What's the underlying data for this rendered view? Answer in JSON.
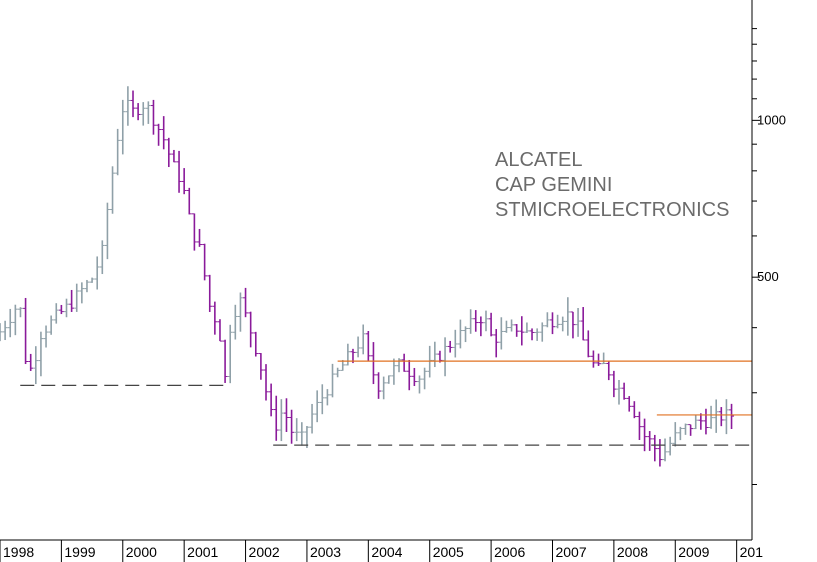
{
  "chart_data": {
    "type": "ohlc-bar",
    "title": "",
    "annotations": [
      "ALCATEL",
      "CAP GEMINI",
      "STMICROELECTRONICS"
    ],
    "x_tick_labels": [
      "1998",
      "1999",
      "2000",
      "2001",
      "2002",
      "2003",
      "2004",
      "2005",
      "2006",
      "2007",
      "2008",
      "2009",
      "201"
    ],
    "y_tick_labels": [
      "1000",
      "500"
    ],
    "y_scale": "log",
    "ylim": [
      160,
      1600
    ],
    "xlim": [
      1998.0,
      2010.25
    ],
    "up_color": "#8fa0a8",
    "down_color": "#8a1a9a",
    "support_line_color": "#444444",
    "resistance_line_color": "#e07020",
    "support_lines": [
      {
        "x_start": 1998.33,
        "x_end": 2001.7,
        "y": 310
      },
      {
        "x_start": 2002.45,
        "x_end": 2010.25,
        "y": 238
      }
    ],
    "resistance_lines": [
      {
        "x_start": 2003.5,
        "x_end": 2010.25,
        "y": 345
      },
      {
        "x_start": 2008.7,
        "x_end": 2010.25,
        "y": 272
      }
    ],
    "close_path": [
      [
        1998.0,
        380
      ],
      [
        1998.25,
        420
      ],
      [
        1998.4,
        450
      ],
      [
        1998.5,
        350
      ],
      [
        1998.6,
        330
      ],
      [
        1998.75,
        390
      ],
      [
        1999.0,
        420
      ],
      [
        1999.2,
        440
      ],
      [
        1999.4,
        470
      ],
      [
        1999.6,
        500
      ],
      [
        1999.75,
        560
      ],
      [
        1999.85,
        700
      ],
      [
        2000.0,
        930
      ],
      [
        2000.1,
        1080
      ],
      [
        2000.25,
        1040
      ],
      [
        2000.45,
        1080
      ],
      [
        2000.6,
        1000
      ],
      [
        2000.75,
        920
      ],
      [
        2000.9,
        820
      ],
      [
        2001.05,
        760
      ],
      [
        2001.2,
        620
      ],
      [
        2001.35,
        560
      ],
      [
        2001.5,
        440
      ],
      [
        2001.65,
        400
      ],
      [
        2001.75,
        320
      ],
      [
        2001.85,
        420
      ],
      [
        2002.0,
        450
      ],
      [
        2002.15,
        400
      ],
      [
        2002.3,
        350
      ],
      [
        2002.45,
        290
      ],
      [
        2002.55,
        255
      ],
      [
        2002.7,
        280
      ],
      [
        2002.85,
        250
      ],
      [
        2003.0,
        245
      ],
      [
        2003.15,
        270
      ],
      [
        2003.3,
        290
      ],
      [
        2003.45,
        310
      ],
      [
        2003.6,
        330
      ],
      [
        2003.75,
        350
      ],
      [
        2003.9,
        370
      ],
      [
        2004.0,
        380
      ],
      [
        2004.1,
        340
      ],
      [
        2004.25,
        310
      ],
      [
        2004.45,
        330
      ],
      [
        2004.6,
        340
      ],
      [
        2004.75,
        330
      ],
      [
        2004.9,
        320
      ],
      [
        2005.0,
        330
      ],
      [
        2005.15,
        345
      ],
      [
        2005.3,
        360
      ],
      [
        2005.5,
        380
      ],
      [
        2005.7,
        400
      ],
      [
        2005.9,
        420
      ],
      [
        2006.0,
        410
      ],
      [
        2006.1,
        380
      ],
      [
        2006.3,
        390
      ],
      [
        2006.5,
        400
      ],
      [
        2006.7,
        390
      ],
      [
        2006.9,
        400
      ],
      [
        2007.0,
        410
      ],
      [
        2007.2,
        420
      ],
      [
        2007.35,
        425
      ],
      [
        2007.5,
        400
      ],
      [
        2007.65,
        360
      ],
      [
        2007.8,
        330
      ],
      [
        2007.95,
        340
      ],
      [
        2008.1,
        310
      ],
      [
        2008.25,
        300
      ],
      [
        2008.4,
        280
      ],
      [
        2008.55,
        250
      ],
      [
        2008.7,
        240
      ],
      [
        2008.85,
        225
      ],
      [
        2008.95,
        235
      ],
      [
        2009.05,
        245
      ],
      [
        2009.2,
        255
      ],
      [
        2009.35,
        260
      ],
      [
        2009.5,
        265
      ],
      [
        2009.65,
        265
      ],
      [
        2009.8,
        270
      ],
      [
        2009.95,
        272
      ]
    ]
  }
}
